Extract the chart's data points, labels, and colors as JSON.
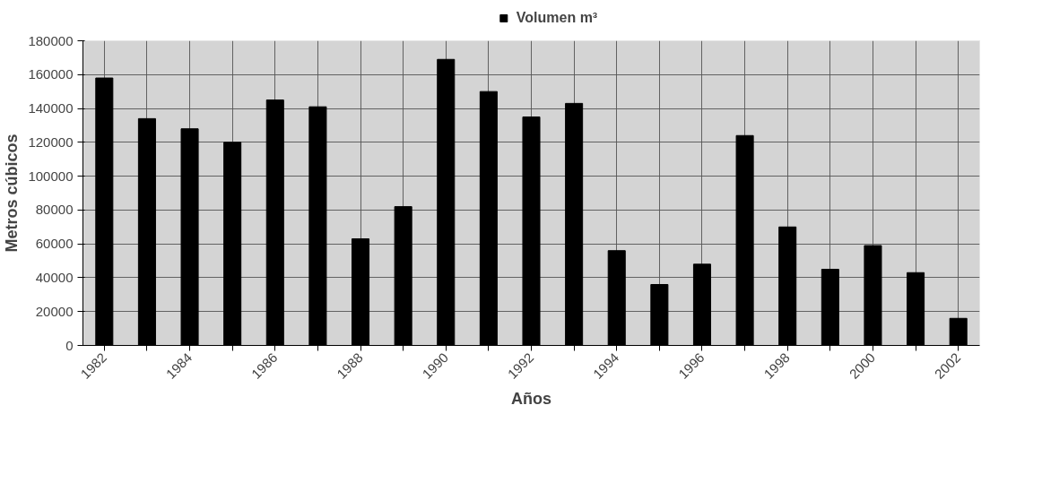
{
  "chart_data": {
    "type": "bar",
    "xlabel": "Años",
    "ylabel": "Metros cúbicos",
    "x": [
      1982,
      1983,
      1984,
      1985,
      1986,
      1987,
      1988,
      1989,
      1990,
      1991,
      1992,
      1993,
      1994,
      1995,
      1996,
      1997,
      1998,
      1999,
      2000,
      2001,
      2002
    ],
    "series": [
      {
        "name": "Volumen m³",
        "color": "#000000",
        "values": [
          158000,
          134000,
          128000,
          120000,
          145000,
          141000,
          63000,
          82000,
          169000,
          150000,
          135000,
          143000,
          56000,
          36000,
          48000,
          124000,
          70000,
          45000,
          59000,
          43000,
          16000
        ]
      }
    ],
    "xlim": [
      1981.5,
      2002.5
    ],
    "xticks": [
      1982,
      {
        "value": 1983,
        "label": null
      },
      1984,
      {
        "value": 1985,
        "label": null
      },
      1986,
      {
        "value": 1987,
        "label": null
      },
      1988,
      {
        "value": 1989,
        "label": null
      },
      1990,
      {
        "value": 1991,
        "label": null
      },
      1992,
      {
        "value": 1993,
        "label": null
      },
      1994,
      {
        "value": 1995,
        "label": null
      },
      1996,
      {
        "value": 1997,
        "label": null
      },
      1998,
      {
        "value": 1999,
        "label": null
      },
      2000,
      {
        "value": 2001,
        "label": null
      },
      2002
    ],
    "ylim": [
      0,
      180000
    ],
    "yticks": [
      0,
      20000,
      40000,
      60000,
      80000,
      100000,
      120000,
      140000,
      160000,
      180000
    ],
    "grid": true,
    "legend": "top"
  }
}
